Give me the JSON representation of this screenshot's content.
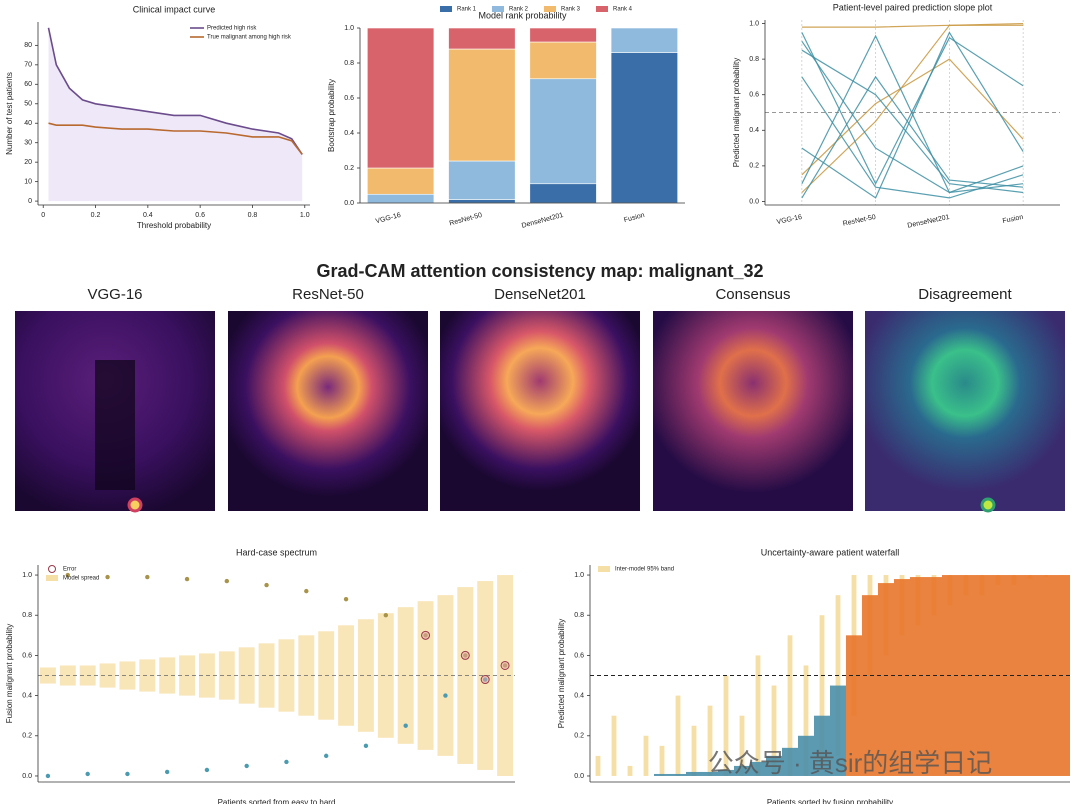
{
  "chart_data": [
    {
      "type": "line",
      "title": "Clinical impact curve",
      "xlabel": "Threshold probability",
      "ylabel": "Number of test patients",
      "x": [
        0.02,
        0.05,
        0.1,
        0.15,
        0.2,
        0.3,
        0.4,
        0.5,
        0.6,
        0.7,
        0.8,
        0.9,
        0.95,
        0.99
      ],
      "series": [
        {
          "name": "Predicted high risk",
          "color": "#6b4c8c",
          "values": [
            89,
            70,
            58,
            52,
            50,
            48,
            46,
            44,
            44,
            40,
            37,
            35,
            32,
            24
          ]
        },
        {
          "name": "True malignant among high risk",
          "color": "#b8692e",
          "values": [
            40,
            39,
            39,
            39,
            38,
            37,
            37,
            36,
            36,
            35,
            33,
            33,
            31,
            24
          ]
        }
      ],
      "fill": "#efe8f9",
      "xlim": [
        -0.02,
        1.02
      ],
      "ylim": [
        -2,
        92
      ],
      "xticks": [
        0,
        0.2,
        0.4,
        0.6,
        0.8,
        {
          "value": 1,
          "label": "1.0"
        }
      ],
      "yticks": [
        0,
        10,
        20,
        30,
        40,
        50,
        60,
        70,
        80
      ],
      "legend": "top-right"
    },
    {
      "type": "bar",
      "stacked": true,
      "title": "Model rank probability",
      "ylabel": "Bootstrap probability",
      "categories": [
        "VGG-16",
        "ResNet-50",
        "DenseNet201",
        "Fusion"
      ],
      "series": [
        {
          "name": "Rank 1",
          "color": "#3a6ea8",
          "values": [
            0,
            0.02,
            0.11,
            0.86
          ]
        },
        {
          "name": "Rank 2",
          "color": "#8fbadd",
          "values": [
            0.05,
            0.22,
            0.6,
            0.14
          ]
        },
        {
          "name": "Rank 3",
          "color": "#f2ba6c",
          "values": [
            0.15,
            0.64,
            0.21,
            0
          ]
        },
        {
          "name": "Rank 4",
          "color": "#d9636b",
          "values": [
            0.8,
            0.12,
            0.08,
            0
          ]
        }
      ],
      "ylim": [
        0,
        1
      ],
      "yticks": [
        {
          "value": 0,
          "label": "0.0"
        },
        0.2,
        0.4,
        0.6,
        0.8,
        {
          "value": 1,
          "label": "1.0"
        }
      ],
      "legend": "top"
    },
    {
      "type": "slope",
      "title": "Patient-level paired prediction slope plot",
      "ylabel": "Predicted malignant probability",
      "categories": [
        "VGG-16",
        "ResNet-50",
        "DenseNet201",
        "Fusion"
      ],
      "threshold": 0.5,
      "series": [
        {
          "color": "#c8953a",
          "values": [
            0.98,
            0.98,
            0.99,
            1
          ]
        },
        {
          "color": "#c8953a",
          "values": [
            0.15,
            0.55,
            0.8,
            0.35
          ]
        },
        {
          "color": "#c8953a",
          "values": [
            0.05,
            0.45,
            0.99,
            0.99
          ]
        },
        {
          "color": "#3d8fa3",
          "values": [
            0.9,
            0.3,
            0.05,
            0.1
          ]
        },
        {
          "color": "#3d8fa3",
          "values": [
            0.1,
            0.93,
            0.05,
            0.2
          ]
        },
        {
          "color": "#3d8fa3",
          "values": [
            0.85,
            0.6,
            0.1,
            0.05
          ]
        },
        {
          "color": "#3d8fa3",
          "values": [
            0.7,
            0.08,
            0.02,
            0.15
          ]
        },
        {
          "color": "#3d8fa3",
          "values": [
            0.95,
            0.1,
            0.92,
            0.65
          ]
        },
        {
          "color": "#3d8fa3",
          "values": [
            0.02,
            0.7,
            0.12,
            0.08
          ]
        },
        {
          "color": "#3d8fa3",
          "values": [
            0.3,
            0.02,
            0.95,
            0.28
          ]
        }
      ],
      "ylim": [
        -0.02,
        1.02
      ],
      "yticks": [
        {
          "value": 0,
          "label": "0.0"
        },
        0.2,
        0.4,
        0.6,
        0.8,
        {
          "value": 1,
          "label": "1.0"
        }
      ]
    },
    {
      "type": "scatter",
      "title": "Hard-case spectrum",
      "xlabel": "Patients sorted from easy to hard",
      "ylabel": "Fusion malignant probability",
      "threshold": 0.5,
      "points": {
        "color_low": "#4a9bb0",
        "color_high": "#a8934a",
        "values": [
          0,
          1,
          0.01,
          0.99,
          0.01,
          0.99,
          0.02,
          0.98,
          0.03,
          0.97,
          0.05,
          0.95,
          0.07,
          0.92,
          0.1,
          0.88,
          0.15,
          0.8,
          0.25,
          0.7,
          0.4,
          0.6,
          0.48,
          0.55
        ]
      },
      "band": {
        "name": "Model spread",
        "color": "#f6dfa6",
        "lower": [
          0.46,
          0.45,
          0.45,
          0.44,
          0.43,
          0.42,
          0.41,
          0.4,
          0.39,
          0.38,
          0.36,
          0.34,
          0.32,
          0.3,
          0.28,
          0.25,
          0.22,
          0.19,
          0.16,
          0.13,
          0.1,
          0.06,
          0.03,
          0
        ],
        "upper": [
          0.54,
          0.55,
          0.55,
          0.56,
          0.57,
          0.58,
          0.59,
          0.6,
          0.61,
          0.62,
          0.64,
          0.66,
          0.68,
          0.7,
          0.72,
          0.75,
          0.78,
          0.81,
          0.84,
          0.87,
          0.9,
          0.94,
          0.97,
          1
        ]
      },
      "errors": {
        "name": "Error",
        "color": "#9a3a4a",
        "x": [
          19,
          21,
          22,
          23
        ],
        "values": [
          0.7,
          0.6,
          0.48,
          0.55
        ]
      },
      "ylim": [
        -0.03,
        1.05
      ],
      "yticks": [
        {
          "value": 0,
          "label": "0.0"
        },
        0.2,
        0.4,
        0.6,
        0.8,
        {
          "value": 1,
          "label": "1.0"
        }
      ],
      "legend": "top-left"
    },
    {
      "type": "waterfall",
      "title": "Uncertainty-aware patient waterfall",
      "xlabel": "Patients sorted by fusion probability",
      "ylabel": "Predicted malignant probability",
      "threshold": 0.5,
      "color_low": "#4a8fa8",
      "color_high": "#e8762a",
      "values": [
        0,
        0,
        0,
        0,
        0.01,
        0.01,
        0.02,
        0.02,
        0.03,
        0.05,
        0.07,
        0.1,
        0.14,
        0.2,
        0.3,
        0.45,
        0.7,
        0.9,
        0.96,
        0.98,
        0.99,
        0.99,
        1,
        1,
        1,
        1,
        1,
        1,
        1,
        1
      ],
      "band": {
        "name": "Inter-model 95% band",
        "color": "#f6dfa6",
        "lower": [
          0,
          0,
          0,
          0,
          0,
          0,
          0,
          0,
          0,
          0,
          0,
          0,
          0,
          0,
          0.05,
          0.1,
          0.3,
          0.5,
          0.6,
          0.7,
          0.75,
          0.8,
          0.85,
          0.9,
          0.9,
          0.95,
          0.95,
          0.98,
          0.99,
          1
        ],
        "upper": [
          0.1,
          0.3,
          0.05,
          0.2,
          0.15,
          0.4,
          0.25,
          0.35,
          0.5,
          0.3,
          0.6,
          0.45,
          0.7,
          0.55,
          0.8,
          0.9,
          1,
          1,
          1,
          1,
          1,
          1,
          1,
          1,
          1,
          1,
          1,
          1,
          1,
          1
        ]
      },
      "ylim": [
        -0.03,
        1.05
      ],
      "yticks": [
        {
          "value": 0,
          "label": "0.0"
        },
        0.2,
        0.4,
        0.6,
        0.8,
        {
          "value": 1,
          "label": "1.0"
        }
      ],
      "legend": "top-left"
    }
  ],
  "gradcam": {
    "title": "Grad-CAM attention consistency map: malignant_32",
    "panels": [
      "VGG-16",
      "ResNet-50",
      "DenseNet201",
      "Consensus",
      "Disagreement"
    ]
  },
  "watermark": "公众号 · 黄sir的组学日记"
}
